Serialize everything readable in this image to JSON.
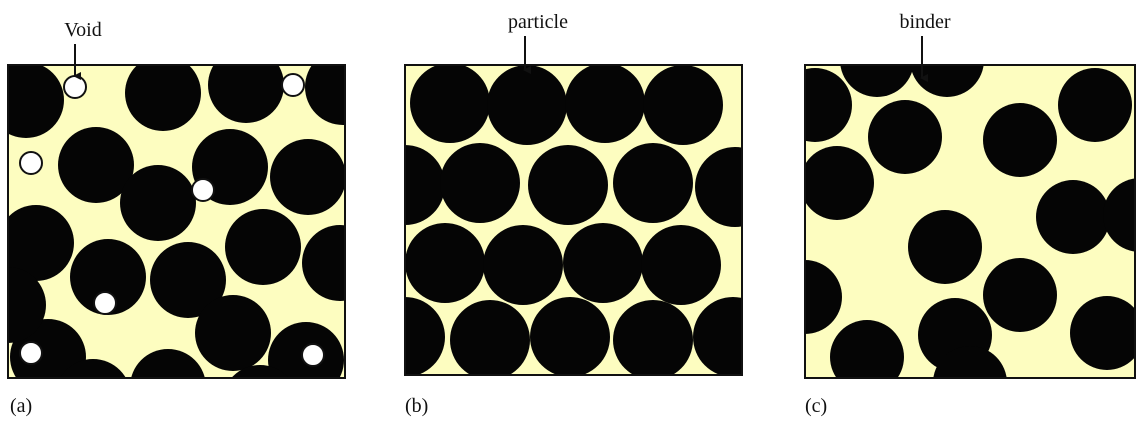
{
  "panels": [
    {
      "label": "Void",
      "caption": "(a)"
    },
    {
      "label": "particle",
      "caption": "(b)"
    },
    {
      "label": "binder",
      "caption": "(c)"
    }
  ]
}
